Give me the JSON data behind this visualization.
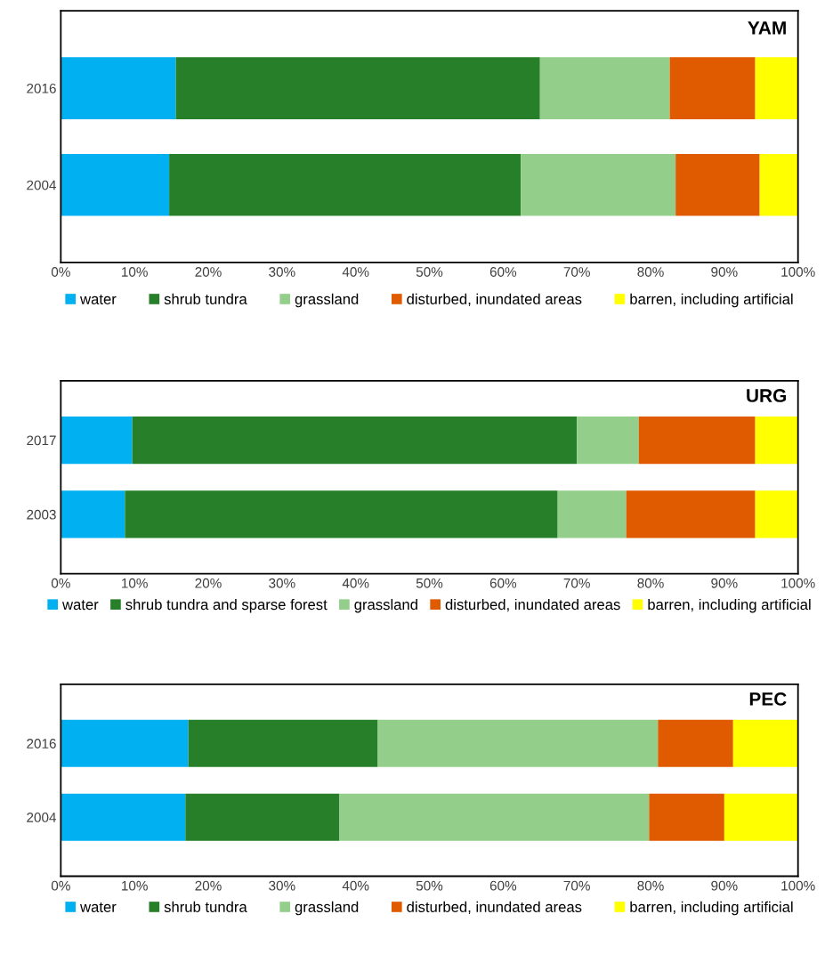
{
  "chart_data": [
    {
      "type": "bar",
      "title": "YAM",
      "orientation": "horizontal",
      "stacked": true,
      "legend": "bottom",
      "categories": [
        "2016",
        "2004"
      ],
      "xlim": [
        0,
        100
      ],
      "xticks": [
        {
          "value": 0,
          "label": "0%"
        },
        {
          "value": 10,
          "label": "10%"
        },
        {
          "value": 20,
          "label": "20%"
        },
        {
          "value": 30,
          "label": "30%"
        },
        {
          "value": 40,
          "label": "40%"
        },
        {
          "value": 50,
          "label": "50%"
        },
        {
          "value": 60,
          "label": "60%"
        },
        {
          "value": 70,
          "label": "70%"
        },
        {
          "value": 80,
          "label": "80%"
        },
        {
          "value": 90,
          "label": "90%"
        },
        {
          "value": 100,
          "label": "100%"
        }
      ],
      "series": [
        {
          "name": "water",
          "color": "#00b0f0",
          "values": [
            15.6,
            14.7
          ]
        },
        {
          "name": "shrub tundra",
          "color": "#278029",
          "values": [
            49.4,
            47.7
          ]
        },
        {
          "name": "grassland",
          "color": "#93cf8b",
          "values": [
            17.6,
            21.0
          ]
        },
        {
          "name": "disturbed, inundated areas",
          "color": "#e05a00",
          "values": [
            11.6,
            11.4
          ]
        },
        {
          "name": "barren, including artificial",
          "color": "#ffff00",
          "values": [
            5.8,
            5.2
          ]
        }
      ]
    },
    {
      "type": "bar",
      "title": "URG",
      "orientation": "horizontal",
      "stacked": true,
      "legend": "bottom",
      "categories": [
        "2017",
        "2003"
      ],
      "xlim": [
        0,
        100
      ],
      "xticks": [
        {
          "value": 0,
          "label": "0%"
        },
        {
          "value": 10,
          "label": "10%"
        },
        {
          "value": 20,
          "label": "20%"
        },
        {
          "value": 30,
          "label": "30%"
        },
        {
          "value": 40,
          "label": "40%"
        },
        {
          "value": 50,
          "label": "50%"
        },
        {
          "value": 60,
          "label": "60%"
        },
        {
          "value": 70,
          "label": "70%"
        },
        {
          "value": 80,
          "label": "80%"
        },
        {
          "value": 90,
          "label": "90%"
        },
        {
          "value": 100,
          "label": "100%"
        }
      ],
      "series": [
        {
          "name": "water",
          "color": "#00b0f0",
          "values": [
            9.7,
            8.7
          ]
        },
        {
          "name": "shrub tundra and sparse forest",
          "color": "#278029",
          "values": [
            60.3,
            58.7
          ]
        },
        {
          "name": "grassland",
          "color": "#93cf8b",
          "values": [
            8.4,
            9.3
          ]
        },
        {
          "name": "disturbed, inundated areas",
          "color": "#e05a00",
          "values": [
            15.8,
            17.5
          ]
        },
        {
          "name": "barren, including artificial",
          "color": "#ffff00",
          "values": [
            5.8,
            5.8
          ]
        }
      ]
    },
    {
      "type": "bar",
      "title": "PEC",
      "orientation": "horizontal",
      "stacked": true,
      "legend": "bottom",
      "categories": [
        "2016",
        "2004"
      ],
      "xlim": [
        0,
        100
      ],
      "xticks": [
        {
          "value": 0,
          "label": "0%"
        },
        {
          "value": 10,
          "label": "10%"
        },
        {
          "value": 20,
          "label": "20%"
        },
        {
          "value": 30,
          "label": "30%"
        },
        {
          "value": 40,
          "label": "40%"
        },
        {
          "value": 50,
          "label": "50%"
        },
        {
          "value": 60,
          "label": "60%"
        },
        {
          "value": 70,
          "label": "70%"
        },
        {
          "value": 80,
          "label": "80%"
        },
        {
          "value": 90,
          "label": "90%"
        },
        {
          "value": 100,
          "label": "100%"
        }
      ],
      "series": [
        {
          "name": "water",
          "color": "#00b0f0",
          "values": [
            17.3,
            16.9
          ]
        },
        {
          "name": "shrub tundra",
          "color": "#278029",
          "values": [
            25.7,
            20.9
          ]
        },
        {
          "name": "grassland",
          "color": "#93cf8b",
          "values": [
            38.0,
            42.0
          ]
        },
        {
          "name": "disturbed, inundated areas",
          "color": "#e05a00",
          "values": [
            10.2,
            10.2
          ]
        },
        {
          "name": "barren, including artificial",
          "color": "#ffff00",
          "values": [
            8.8,
            10.0
          ]
        }
      ]
    }
  ]
}
